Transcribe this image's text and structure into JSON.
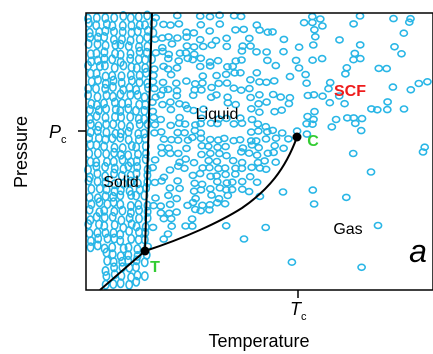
{
  "axes": {
    "x_label": "Temperature",
    "y_label": "Pressure",
    "pc_main": "P",
    "pc_sub": "c",
    "tc_main": "T",
    "tc_sub": "c"
  },
  "regions": {
    "solid": "Solid",
    "liquid": "Liquid",
    "gas": "Gas",
    "scf": "SCF"
  },
  "points": {
    "triple": "T",
    "critical": "C"
  },
  "panel_letter": "a",
  "colors": {
    "particle": "#29b6e6",
    "scf": "#ee1c1c",
    "point_label": "#33cc33",
    "line": "#000000"
  }
}
